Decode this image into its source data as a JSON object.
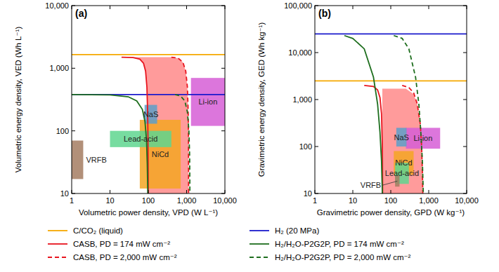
{
  "chart_data": [
    {
      "type": "line",
      "title": "(a)",
      "x_label": "Volumetric power density, VPD (W L⁻¹)",
      "y_label": "Volumetric energy density, VED (Wh L⁻¹)",
      "log": true,
      "legend": "bottom",
      "xlim": [
        1,
        10000
      ],
      "ylim": [
        10,
        10000
      ],
      "xticks": [
        1,
        10,
        100,
        {
          "value": 1000,
          "label": "1,000"
        },
        {
          "value": 10000,
          "label": "10,000"
        }
      ],
      "yticks": [
        10,
        100,
        {
          "value": 1000,
          "label": "1,000"
        },
        {
          "value": 10000,
          "label": "10,000"
        }
      ],
      "regions": [
        {
          "color": "#ff7a7a",
          "x": [
            20,
            400,
            600,
            800,
            950,
            1050,
            1100,
            1120,
            1130,
            100,
            98,
            96,
            92,
            85,
            75,
            60,
            40,
            20
          ],
          "y": [
            1500,
            1500,
            1450,
            1250,
            900,
            500,
            200,
            80,
            10,
            10,
            80,
            200,
            500,
            900,
            1200,
            1400,
            1480,
            1500
          ]
        }
      ],
      "boxes": [
        {
          "label": "VRFB",
          "color": "#a57c62",
          "x": [
            1,
            2
          ],
          "y": [
            17,
            70
          ]
        },
        {
          "label": "NiCd",
          "color": "#f5a623",
          "x": [
            60,
            700
          ],
          "y": [
            12,
            150
          ]
        },
        {
          "label": "Lead-acid",
          "color": "#5fd68f",
          "x": [
            10,
            400
          ],
          "y": [
            55,
            100
          ]
        },
        {
          "label": "NaS",
          "color": "#5d9fc9",
          "x": [
            80,
            170
          ],
          "y": [
            130,
            260
          ]
        },
        {
          "label": "Li-ion",
          "color": "#d65ed6",
          "x": [
            1300,
            10000
          ],
          "y": [
            120,
            700
          ]
        }
      ],
      "series": [
        {
          "name": "C/CO₂ (liquid)",
          "color": "#f5a800",
          "line_style": "solid",
          "x": [
            1,
            10000
          ],
          "values": [
            1650,
            1650
          ]
        },
        {
          "name": "H₂ (20 MPa)",
          "color": "#1a1acc",
          "line_style": "solid",
          "x": [
            1,
            10000
          ],
          "values": [
            380,
            380
          ]
        },
        {
          "name": "CASB, PD = 174 mW cm⁻²",
          "color": "#e8141e",
          "line_style": "solid",
          "x": [
            20,
            40,
            60,
            75,
            85,
            92,
            96,
            98,
            100
          ],
          "values": [
            1500,
            1480,
            1400,
            1200,
            900,
            500,
            200,
            80,
            10
          ]
        },
        {
          "name": "H₂/H₂O-P2G2P, PD = 174 mW cm⁻²",
          "color": "#1e6e1e",
          "line_style": "solid",
          "x": [
            1,
            10,
            30,
            50,
            70,
            82,
            90,
            94,
            97
          ],
          "values": [
            380,
            375,
            350,
            300,
            220,
            140,
            70,
            30,
            10
          ]
        },
        {
          "name": "CASB, PD = 2,000 mW cm⁻²",
          "color": "#e8141e",
          "line_style": "dashed",
          "x": [
            400,
            600,
            800,
            950,
            1050,
            1100,
            1120,
            1130
          ],
          "values": [
            1500,
            1450,
            1250,
            900,
            500,
            200,
            80,
            10
          ]
        },
        {
          "name": "H₂/H₂O-P2G2P, PD = 2,000 mW cm⁻²",
          "color": "#1e6e1e",
          "line_style": "dashed",
          "x": [
            500,
            700,
            900,
            1050,
            1150,
            1200,
            1220
          ],
          "values": [
            380,
            360,
            300,
            200,
            100,
            40,
            10
          ]
        }
      ]
    },
    {
      "type": "line",
      "title": "(b)",
      "x_label": "Gravimetric power density, GPD (W kg⁻¹)",
      "y_label": "Gravimetric energy density, GED (Wh kg⁻¹)",
      "log": true,
      "xlim": [
        1,
        10000
      ],
      "ylim": [
        10,
        100000
      ],
      "xticks": [
        1,
        10,
        100,
        {
          "value": 1000,
          "label": "1,000"
        },
        {
          "value": 10000,
          "label": "10,000"
        }
      ],
      "yticks": [
        10,
        100,
        {
          "value": 1000,
          "label": "1,000"
        },
        {
          "value": 10000,
          "label": "10,000"
        },
        {
          "value": 100000,
          "label": "100,000"
        }
      ],
      "regions": [
        {
          "color": "#ff7a7a",
          "x": [
            60,
            60,
            250,
            400,
            500,
            600,
            650,
            680,
            700
          ],
          "y": [
            10,
            1700,
            1700,
            1300,
            800,
            300,
            100,
            30,
            10
          ]
        }
      ],
      "boxes": [
        {
          "label": "NiCd",
          "color": "#f5a623",
          "x": [
            120,
            400
          ],
          "y": [
            25,
            80
          ]
        },
        {
          "label": "Lead-acid",
          "color": "#5fd68f",
          "x": [
            130,
            300
          ],
          "y": [
            16,
            45
          ]
        },
        {
          "label": "VRFB",
          "color": "#a57c62",
          "x": [
            130,
            170
          ],
          "y": [
            14,
            24
          ]
        },
        {
          "label": "Li-ion",
          "color": "#d65ed6",
          "x": [
            250,
            2000
          ],
          "y": [
            90,
            250
          ]
        },
        {
          "label": "NaS",
          "color": "#5d9fc9",
          "x": [
            140,
            260
          ],
          "y": [
            100,
            250
          ]
        }
      ],
      "series": [
        {
          "color": "#f5a800",
          "line_style": "solid",
          "x": [
            1,
            10000
          ],
          "values": [
            2500,
            2500
          ]
        },
        {
          "color": "#1a1acc",
          "line_style": "solid",
          "x": [
            1,
            10000
          ],
          "values": [
            25000,
            25000
          ]
        },
        {
          "color": "#e8141e",
          "line_style": "solid",
          "x": [
            20,
            35,
            45,
            52,
            57,
            60,
            61
          ],
          "values": [
            2000,
            1900,
            1600,
            1100,
            500,
            100,
            10
          ]
        },
        {
          "color": "#1e6e1e",
          "line_style": "solid",
          "x": [
            6,
            10,
            20,
            35,
            45,
            52,
            57,
            60
          ],
          "values": [
            23000,
            20000,
            12000,
            3000,
            800,
            200,
            50,
            10
          ]
        },
        {
          "color": "#e8141e",
          "line_style": "dashed",
          "x": [
            200,
            300,
            400,
            500,
            600,
            650,
            680,
            700
          ],
          "values": [
            2000,
            1800,
            1400,
            800,
            300,
            100,
            30,
            10
          ]
        },
        {
          "color": "#1e6e1e",
          "line_style": "dashed",
          "x": [
            120,
            200,
            300,
            450,
            550,
            620,
            680,
            720
          ],
          "values": [
            23000,
            20000,
            12000,
            3000,
            800,
            200,
            50,
            10
          ]
        }
      ]
    }
  ]
}
